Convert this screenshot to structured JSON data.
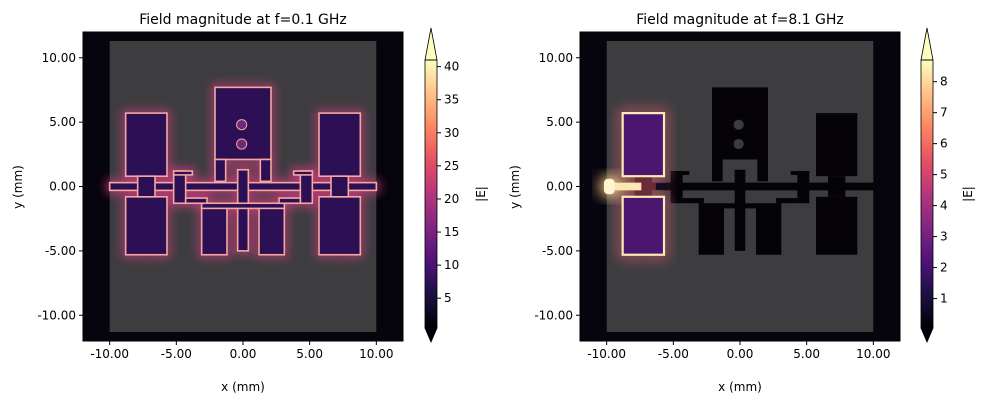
{
  "chart_data": [
    {
      "type": "heatmap",
      "title": "Field magnitude at f=0.1 GHz",
      "xlabel": "x (mm)",
      "ylabel": "y (mm)",
      "xlim": [
        -12,
        12
      ],
      "ylim": [
        -12,
        12
      ],
      "xticks": [
        -10,
        -5,
        0,
        5,
        10
      ],
      "xtick_labels": [
        "-10.00",
        "-5.00",
        "0.00",
        "5.00",
        "10.00"
      ],
      "yticks": [
        -10,
        -5,
        0,
        5,
        10
      ],
      "ytick_labels": [
        "-10.00",
        "-5.00",
        "0.00",
        "5.00",
        "10.00"
      ],
      "colorbar": {
        "label": "|E|",
        "min": 0.5,
        "max": 41,
        "ticks": [
          5,
          10,
          15,
          20,
          25,
          30,
          35,
          40
        ],
        "tick_labels": [
          "5",
          "10",
          "15",
          "20",
          "25",
          "30",
          "35",
          "40"
        ],
        "extend": "both",
        "colormap": "magma"
      },
      "field_profile": "all-edges"
    },
    {
      "type": "heatmap",
      "title": "Field magnitude at f=8.1 GHz",
      "xlabel": "x (mm)",
      "ylabel": "y (mm)",
      "xlim": [
        -12,
        12
      ],
      "ylim": [
        -12,
        12
      ],
      "xticks": [
        -10,
        -5,
        0,
        5,
        10
      ],
      "xtick_labels": [
        "-10.00",
        "-5.00",
        "0.00",
        "5.00",
        "10.00"
      ],
      "yticks": [
        -10,
        -5,
        0,
        5,
        10
      ],
      "ytick_labels": [
        "-10.00",
        "-5.00",
        "0.00",
        "5.00",
        "10.00"
      ],
      "colorbar": {
        "label": "|E|",
        "min": 0.05,
        "max": 8.7,
        "ticks": [
          1,
          2,
          3,
          4,
          5,
          6,
          7,
          8
        ],
        "tick_labels": [
          "1",
          "2",
          "3",
          "4",
          "5",
          "6",
          "7",
          "8"
        ],
        "extend": "both",
        "colormap": "magma"
      },
      "field_profile": "left-resonator"
    }
  ]
}
